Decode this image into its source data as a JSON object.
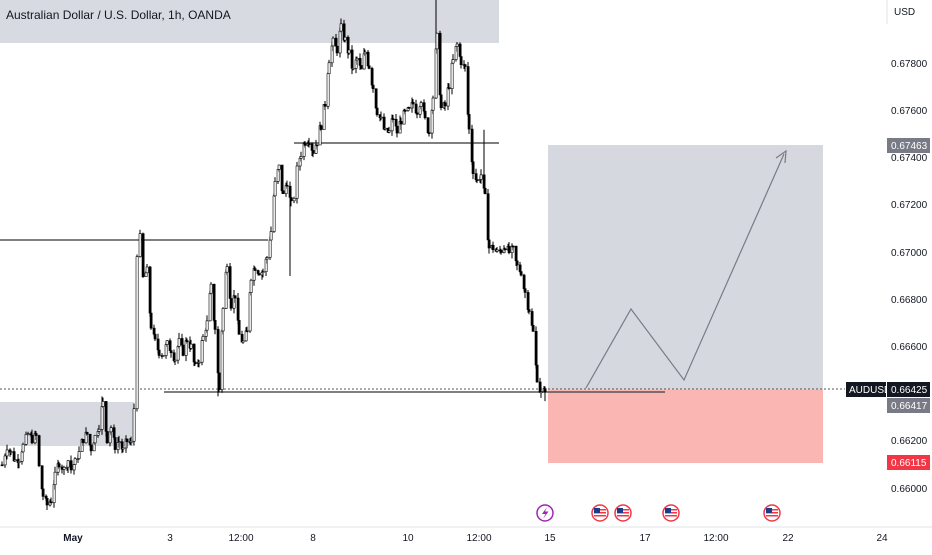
{
  "header": {
    "title": "Australian Dollar / U.S. Dollar, 1h, OANDA"
  },
  "price_axis": {
    "currency": "USD",
    "ticks": [
      "0.67800",
      "0.67600",
      "0.67400",
      "0.67200",
      "0.67000",
      "0.66800",
      "0.66600",
      "0.66200",
      "0.66000"
    ]
  },
  "time_axis": {
    "ticks": [
      "May",
      "3",
      "12:00",
      "8",
      "10",
      "12:00",
      "15",
      "17",
      "12:00",
      "22",
      "24"
    ]
  },
  "labels": {
    "symbol": "AUDUSD",
    "last_price": "0.66425",
    "entry_price": "0.66417",
    "target_price": "0.67463",
    "stop_price": "0.66115"
  },
  "colors": {
    "up_candle": "#ffffff",
    "down_candle": "#000000",
    "zone": "#d1d4dc",
    "target_zone": "#d1d4dc",
    "stop_zone": "#f9b6b3",
    "stop_label": "#f23645",
    "dark_label": "#131722",
    "grey_label": "#787b86"
  },
  "event_icons": [
    "lightning-icon",
    "us-flag-icon",
    "us-flag-icon",
    "us-flag-icon",
    "us-flag-icon",
    "us-flag-icon"
  ],
  "chart_data": {
    "type": "candlestick",
    "title": "Australian Dollar / U.S. Dollar, 1h, OANDA",
    "symbol": "AUDUSD",
    "interval": "1h",
    "ylim": [
      0.6594,
      0.6803
    ],
    "close_path": [
      [
        1,
        0.6611
      ],
      [
        6,
        0.6619
      ],
      [
        10,
        0.6616
      ],
      [
        14,
        0.6613
      ],
      [
        18,
        0.6614
      ],
      [
        22,
        0.6619
      ],
      [
        27,
        0.6624
      ],
      [
        31,
        0.6622
      ],
      [
        35,
        0.6623
      ],
      [
        38,
        0.661
      ],
      [
        42,
        0.6598
      ],
      [
        46,
        0.6594
      ],
      [
        50,
        0.6596
      ],
      [
        54,
        0.6606
      ],
      [
        58,
        0.6612
      ],
      [
        63,
        0.6609
      ],
      [
        67,
        0.6613
      ],
      [
        70,
        0.6609
      ],
      [
        74,
        0.6612
      ],
      [
        78,
        0.6616
      ],
      [
        82,
        0.6622
      ],
      [
        86,
        0.6624
      ],
      [
        90,
        0.6618
      ],
      [
        94,
        0.6623
      ],
      [
        98,
        0.6628
      ],
      [
        102,
        0.6637
      ],
      [
        106,
        0.6622
      ],
      [
        110,
        0.6627
      ],
      [
        114,
        0.6619
      ],
      [
        118,
        0.6621
      ],
      [
        122,
        0.6617
      ],
      [
        126,
        0.6621
      ],
      [
        130,
        0.662
      ],
      [
        133,
        0.6635
      ],
      [
        136,
        0.6701
      ],
      [
        139,
        0.6707
      ],
      [
        142,
        0.669
      ],
      [
        146,
        0.6693
      ],
      [
        150,
        0.667
      ],
      [
        154,
        0.6663
      ],
      [
        158,
        0.6659
      ],
      [
        162,
        0.6658
      ],
      [
        166,
        0.6662
      ],
      [
        170,
        0.666
      ],
      [
        174,
        0.6656
      ],
      [
        178,
        0.6663
      ],
      [
        182,
        0.6659
      ],
      [
        186,
        0.6664
      ],
      [
        190,
        0.6661
      ],
      [
        194,
        0.6652
      ],
      [
        198,
        0.6656
      ],
      [
        202,
        0.6665
      ],
      [
        206,
        0.6671
      ],
      [
        210,
        0.6686
      ],
      [
        214,
        0.6669
      ],
      [
        218,
        0.6643
      ],
      [
        222,
        0.6677
      ],
      [
        226,
        0.6697
      ],
      [
        230,
        0.6679
      ],
      [
        234,
        0.6683
      ],
      [
        238,
        0.6666
      ],
      [
        242,
        0.6663
      ],
      [
        246,
        0.6667
      ],
      [
        250,
        0.6691
      ],
      [
        254,
        0.6695
      ],
      [
        258,
        0.6693
      ],
      [
        262,
        0.6693
      ],
      [
        266,
        0.6699
      ],
      [
        270,
        0.671
      ],
      [
        274,
        0.673
      ],
      [
        278,
        0.6737
      ],
      [
        282,
        0.6725
      ],
      [
        286,
        0.6731
      ],
      [
        290,
        0.6721
      ],
      [
        293,
        0.6725
      ],
      [
        296,
        0.6736
      ],
      [
        300,
        0.6743
      ],
      [
        304,
        0.6748
      ],
      [
        308,
        0.6749
      ],
      [
        312,
        0.6744
      ],
      [
        316,
        0.6748
      ],
      [
        320,
        0.6755
      ],
      [
        324,
        0.6764
      ],
      [
        328,
        0.6783
      ],
      [
        332,
        0.679
      ],
      [
        336,
        0.6787
      ],
      [
        340,
        0.6796
      ],
      [
        344,
        0.6791
      ],
      [
        348,
        0.6785
      ],
      [
        352,
        0.6778
      ],
      [
        356,
        0.6783
      ],
      [
        360,
        0.6778
      ],
      [
        364,
        0.6786
      ],
      [
        368,
        0.678
      ],
      [
        372,
        0.6771
      ],
      [
        376,
        0.6761
      ],
      [
        380,
        0.6757
      ],
      [
        384,
        0.6752
      ],
      [
        388,
        0.6752
      ],
      [
        392,
        0.6758
      ],
      [
        396,
        0.6752
      ],
      [
        400,
        0.6757
      ],
      [
        404,
        0.676
      ],
      [
        408,
        0.6761
      ],
      [
        412,
        0.6764
      ],
      [
        416,
        0.6761
      ],
      [
        420,
        0.6766
      ],
      [
        424,
        0.6757
      ],
      [
        428,
        0.6752
      ],
      [
        432,
        0.6767
      ],
      [
        436,
        0.6792
      ],
      [
        440,
        0.6762
      ],
      [
        444,
        0.6763
      ],
      [
        448,
        0.6772
      ],
      [
        452,
        0.6782
      ],
      [
        456,
        0.6789
      ],
      [
        460,
        0.6782
      ],
      [
        464,
        0.6779
      ],
      [
        468,
        0.6753
      ],
      [
        472,
        0.6736
      ],
      [
        476,
        0.6731
      ],
      [
        480,
        0.6734
      ],
      [
        484,
        0.6724
      ],
      [
        488,
        0.6703
      ],
      [
        492,
        0.6703
      ],
      [
        496,
        0.6701
      ],
      [
        500,
        0.6702
      ],
      [
        504,
        0.6704
      ],
      [
        508,
        0.6701
      ],
      [
        512,
        0.6702
      ],
      [
        516,
        0.6695
      ],
      [
        520,
        0.6693
      ],
      [
        524,
        0.6684
      ],
      [
        528,
        0.6677
      ],
      [
        532,
        0.6667
      ],
      [
        536,
        0.6648
      ],
      [
        540,
        0.6641
      ],
      [
        544,
        0.6642
      ]
    ],
    "annotations": {
      "support_level": 0.66417,
      "resistance_levels": [
        0.67463,
        0.67063
      ],
      "target": 0.67463,
      "entry": 0.66417,
      "stop": 0.66115,
      "supply_zone": [
        0.6789,
        0.6803
      ],
      "demand_zone": [
        0.6619,
        0.6631
      ],
      "projection_path": [
        0.66417,
        0.66765,
        0.6645,
        0.6743
      ]
    }
  }
}
